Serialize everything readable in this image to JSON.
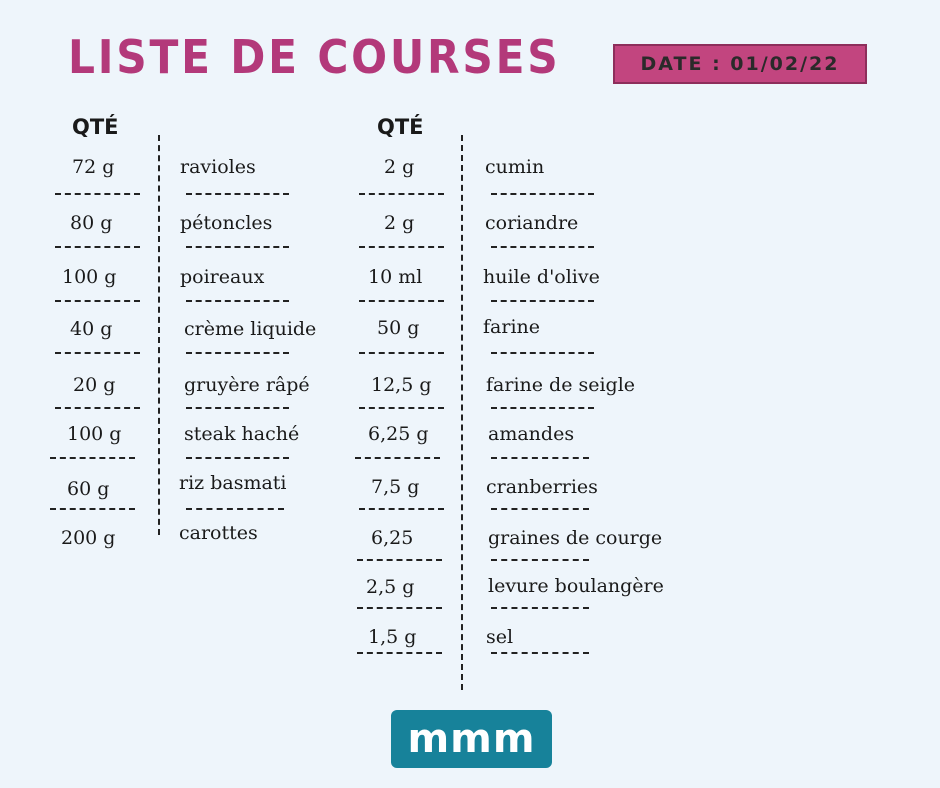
{
  "header": {
    "title": "LISTE DE COURSES",
    "date_label": "DATE : 01/02/22"
  },
  "columns": {
    "left_qty_header": "QTÉ",
    "right_qty_header": "QTÉ"
  },
  "left_list": [
    {
      "qty": "72 g",
      "item": "ravioles"
    },
    {
      "qty": "80 g",
      "item": "pétoncles"
    },
    {
      "qty": "100 g",
      "item": "poireaux"
    },
    {
      "qty": "40 g",
      "item": "crème liquide"
    },
    {
      "qty": "20 g",
      "item": "gruyère râpé"
    },
    {
      "qty": "100 g",
      "item": "steak haché"
    },
    {
      "qty": "60 g",
      "item": "riz basmati"
    },
    {
      "qty": "200 g",
      "item": "carottes"
    }
  ],
  "right_list": [
    {
      "qty": "2 g",
      "item": "cumin"
    },
    {
      "qty": "2 g",
      "item": "coriandre"
    },
    {
      "qty": "10 ml",
      "item": "huile d'olive"
    },
    {
      "qty": "50 g",
      "item": "farine"
    },
    {
      "qty": "12,5 g",
      "item": "farine de seigle"
    },
    {
      "qty": "6,25 g",
      "item": "amandes"
    },
    {
      "qty": "7,5 g",
      "item": "cranberries"
    },
    {
      "qty": "6,25",
      "item": "graines de courge"
    },
    {
      "qty": "2,5 g",
      "item": "levure boulangère"
    },
    {
      "qty": "1,5 g",
      "item": "sel"
    }
  ],
  "logo": {
    "text": "mmm"
  },
  "colors": {
    "background": "#eef5fb",
    "title": "#b3397a",
    "date_badge": "#c2457f",
    "logo_bg": "#17829a"
  },
  "icons": [
    "sparkle-icon",
    "sparkle-icon",
    "sparkle-icon",
    "sparkle-icon",
    "burst-lines-icon"
  ]
}
